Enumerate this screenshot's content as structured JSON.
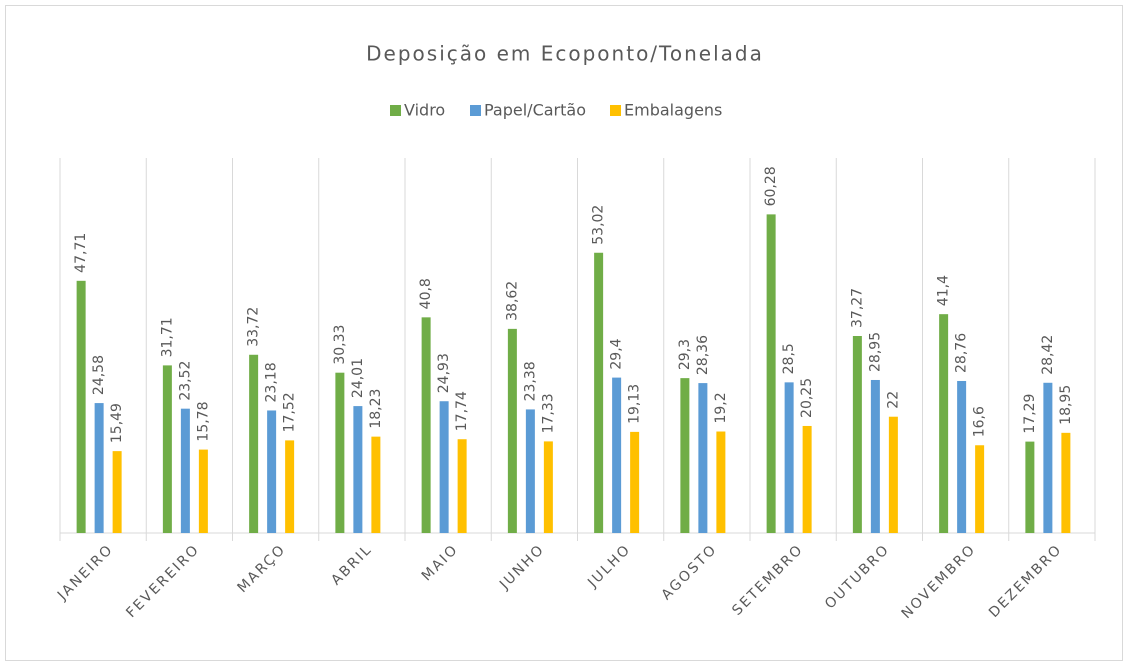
{
  "chart_data": {
    "type": "bar",
    "title": "Deposição em Ecoponto/Tonelada",
    "categories": [
      "JANEIRO",
      "FEVEREIRO",
      "MARÇO",
      "ABRIL",
      "MAIO",
      "JUNHO",
      "JULHO",
      "AGOSTO",
      "SETEMBRO",
      "OUTUBRO",
      "NOVEMBRO",
      "DEZEMBRO"
    ],
    "series": [
      {
        "name": "Vidro",
        "color": "#70ad47",
        "values": [
          47.71,
          31.71,
          33.72,
          30.33,
          40.8,
          38.62,
          53.02,
          29.3,
          60.28,
          37.27,
          41.4,
          17.29
        ],
        "value_labels": [
          "47,71",
          "31,71",
          "33,72",
          "30,33",
          "40,8",
          "38,62",
          "53,02",
          "29,3",
          "60,28",
          "37,27",
          "41,4",
          "17,29"
        ]
      },
      {
        "name": "Papel/Cartão",
        "color": "#5b9bd5",
        "values": [
          24.58,
          23.52,
          23.18,
          24.01,
          24.93,
          23.38,
          29.4,
          28.36,
          28.5,
          28.95,
          28.76,
          28.42
        ],
        "value_labels": [
          "24,58",
          "23,52",
          "23,18",
          "24,01",
          "24,93",
          "23,38",
          "29,4",
          "28,36",
          "28,5",
          "28,95",
          "28,76",
          "28,42"
        ]
      },
      {
        "name": "Embalagens",
        "color": "#ffc000",
        "values": [
          15.49,
          15.78,
          17.52,
          18.23,
          17.74,
          17.33,
          19.13,
          19.2,
          20.25,
          22,
          16.6,
          18.95
        ],
        "value_labels": [
          "15,49",
          "15,78",
          "17,52",
          "18,23",
          "17,74",
          "17,33",
          "19,13",
          "19,2",
          "20,25",
          "22",
          "16,6",
          "18,95"
        ]
      }
    ],
    "ylim": [
      0,
      70
    ],
    "legend": "top"
  }
}
